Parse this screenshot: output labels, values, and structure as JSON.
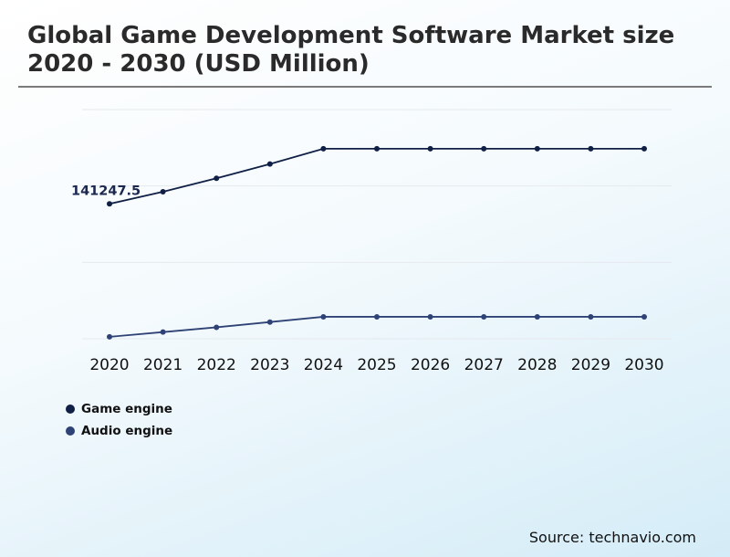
{
  "title": "Global Game Development Software Market size 2020 - 2030 (USD Million)",
  "source": "Source: technavio.com",
  "colors": {
    "game_engine": "#0f1f45",
    "audio_engine": "#2f4275",
    "grid": "#e6e9ee"
  },
  "chart_data": {
    "type": "line",
    "title": "Global Game Development Software Market size 2020 - 2030 (USD Million)",
    "xlabel": "",
    "ylabel": "",
    "x": [
      "2020",
      "2021",
      "2022",
      "2023",
      "2024",
      "2025",
      "2026",
      "2027",
      "2028",
      "2029",
      "2030"
    ],
    "ylim": [
      0,
      240000
    ],
    "grid": true,
    "legend_position": "bottom-left",
    "series": [
      {
        "name": "Game engine",
        "values": [
          141247.5,
          154000,
          168000,
          183000,
          199000,
          199000,
          199000,
          199000,
          199000,
          199000,
          199000
        ]
      },
      {
        "name": "Audio engine",
        "values": [
          2000,
          7000,
          12000,
          17500,
          23000,
          23000,
          23000,
          23000,
          23000,
          23000,
          23000
        ]
      }
    ],
    "annotations": [
      {
        "series": "Game engine",
        "x": "2020",
        "text": "141247.5"
      }
    ]
  }
}
